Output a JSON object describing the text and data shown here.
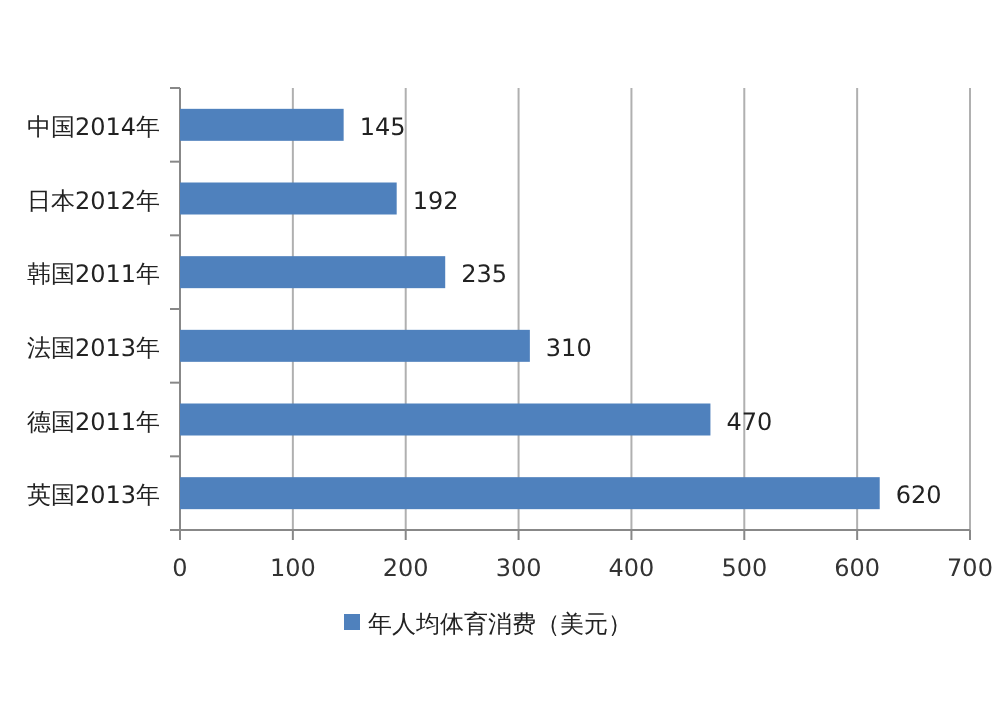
{
  "chart_data": {
    "type": "bar",
    "orientation": "horizontal",
    "categories": [
      "中国2014年",
      "日本2012年",
      "韩国2011年",
      "法国2013年",
      "德国2011年",
      "英国2013年"
    ],
    "series": [
      {
        "name": "年人均体育消费（美元）",
        "color": "#4f81bd",
        "values": [
          145,
          192,
          235,
          310,
          470,
          620
        ]
      }
    ],
    "xlim": [
      0,
      700
    ],
    "xticks": [
      0,
      100,
      200,
      300,
      400,
      500,
      600,
      700
    ],
    "grid": "x",
    "data_labels": true,
    "legend": "bottom"
  }
}
